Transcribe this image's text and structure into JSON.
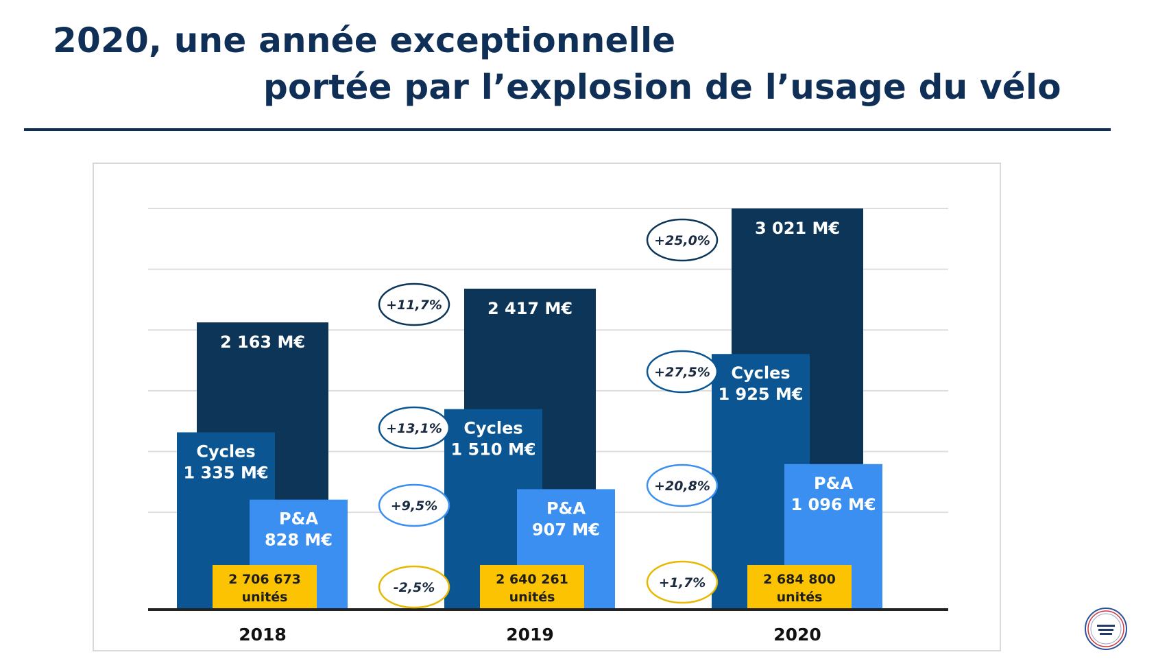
{
  "title": {
    "line1": "2020, une année exceptionnelle",
    "line2": "portée par l’explosion de l’usage du vélo"
  },
  "colors": {
    "title": "#0f2f57",
    "total": "#0d3558",
    "cycles": "#0a5592",
    "pa": "#3a8ff0",
    "units": "#fbc302",
    "grid": "#dddddd",
    "axis": "#222222"
  },
  "chart_data": {
    "type": "bar",
    "categories": [
      "2018",
      "2019",
      "2020"
    ],
    "ylim": [
      0,
      3021
    ],
    "grid": true,
    "series": [
      {
        "name": "",
        "unit": "M€",
        "values": [
          2163,
          2417,
          3021
        ],
        "labels": [
          "2 163 M€",
          "2 417 M€",
          "3 021 M€"
        ]
      },
      {
        "name": "Cycles",
        "unit": "M€",
        "values": [
          1335,
          1510,
          1925
        ],
        "labels": [
          "1 335 M€",
          "1 510 M€",
          "1 925 M€"
        ]
      },
      {
        "name": "P&A",
        "unit": "M€",
        "values": [
          828,
          907,
          1096
        ],
        "labels": [
          "828 M€",
          "907 M€",
          "1 096 M€"
        ]
      }
    ],
    "units": {
      "values": [
        2706673,
        2640261,
        2684800
      ],
      "labels": [
        "2 706 673",
        "2 640 261",
        "2 684 800"
      ],
      "suffix": "unités"
    },
    "growth_badges": [
      {
        "period": "2018-2019",
        "total": "+11,7%",
        "cycles": "+13,1%",
        "pa": "+9,5%",
        "units": "-2,5%"
      },
      {
        "period": "2019-2020",
        "total": "+25,0%",
        "cycles": "+27,5%",
        "pa": "+20,8%",
        "units": "+1,7%"
      }
    ]
  }
}
